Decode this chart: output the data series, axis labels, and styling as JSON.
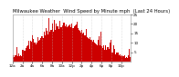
{
  "title": "Milwaukee Weather  Wind Speed by Minute mph  (Last 24 Hours)",
  "bg_color": "#ffffff",
  "bar_color": "#cc0000",
  "grid_color": "#bbbbbb",
  "ylim": [
    0,
    25
  ],
  "yticks": [
    5,
    10,
    15,
    20,
    25
  ],
  "n_points": 1440,
  "title_fontsize": 3.8,
  "tick_fontsize": 3.0,
  "seed": 42
}
